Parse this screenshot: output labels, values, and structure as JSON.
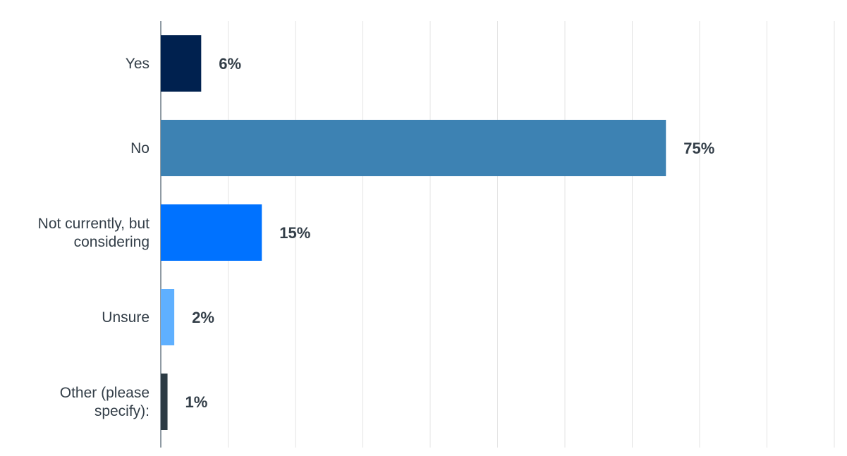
{
  "chart_data": {
    "type": "hbar",
    "categories": [
      "Yes",
      "No",
      "Not currently, but considering",
      "Unsure",
      "Other (please specify):"
    ],
    "values": [
      6,
      75,
      15,
      2,
      1
    ],
    "value_labels": [
      "6%",
      "75%",
      "15%",
      "2%",
      "1%"
    ],
    "colors": [
      "#00214f",
      "#3d82b3",
      "#0072ff",
      "#5fb0ff",
      "#2c3b44"
    ],
    "xlim": [
      0,
      100
    ],
    "xticks": [
      0,
      10,
      20,
      30,
      40,
      50,
      60,
      70,
      80,
      90,
      100
    ],
    "tick_labels": false,
    "grid": true
  }
}
